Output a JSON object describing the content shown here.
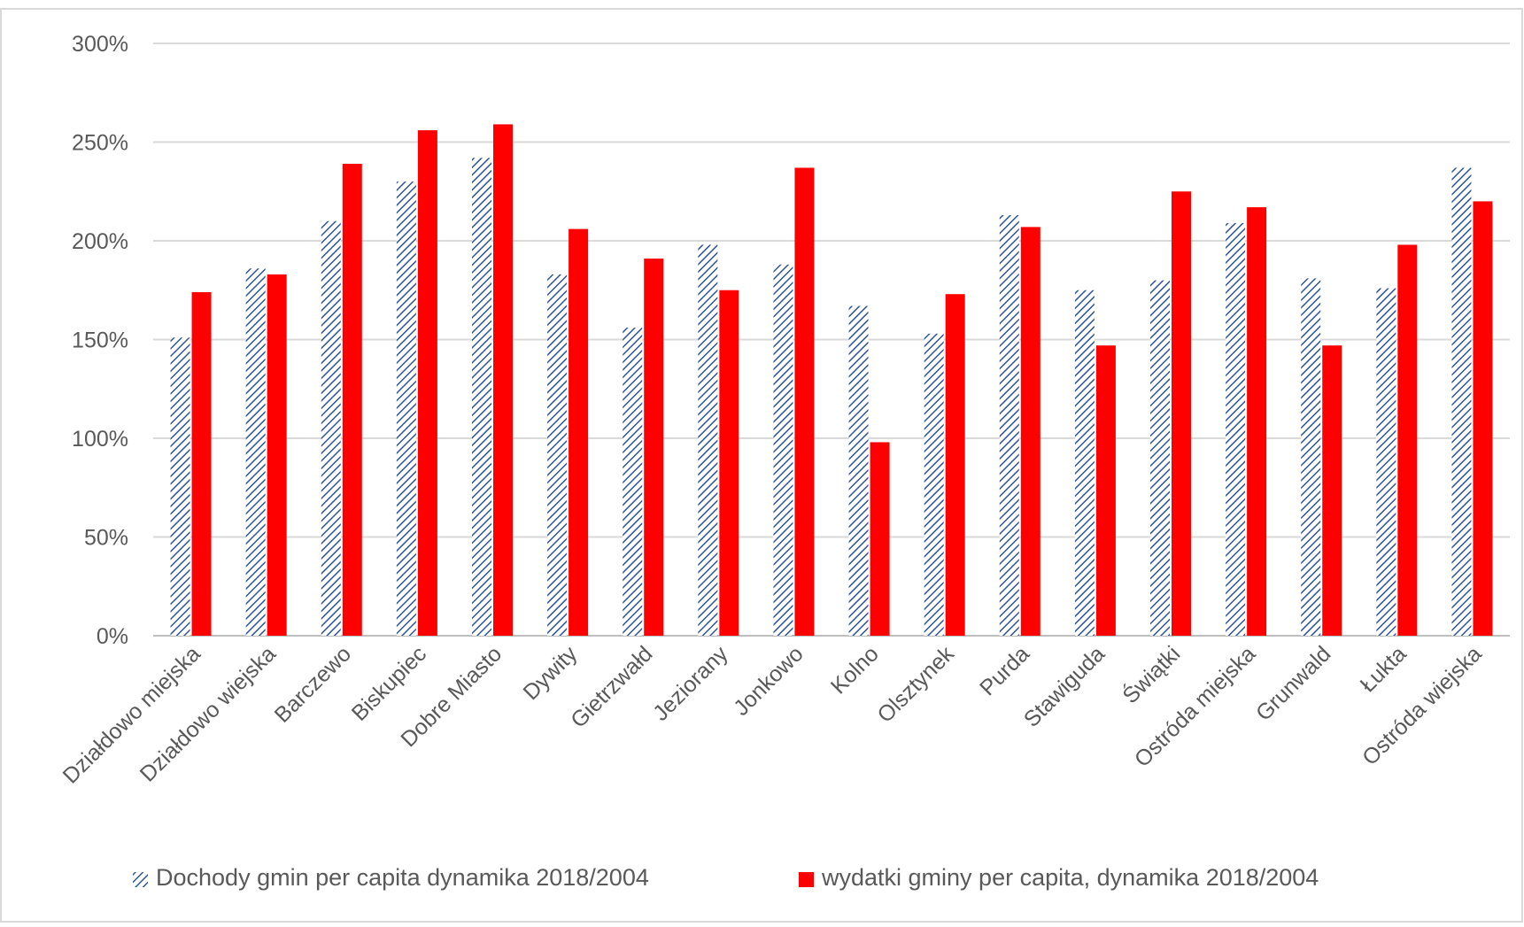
{
  "chart_data": {
    "type": "bar",
    "title": "",
    "xlabel": "",
    "ylabel": "",
    "ylim": [
      0,
      300
    ],
    "y_ticks": [
      "0%",
      "50%",
      "100%",
      "150%",
      "200%",
      "250%",
      "300%"
    ],
    "grid": true,
    "legend_position": "bottom",
    "categories": [
      "Działdowo miejska",
      "Działdowo wiejska",
      "Barczewo",
      "Biskupiec",
      "Dobre Miasto",
      "Dywity",
      "Gietrzwałd",
      "Jeziorany",
      "Jonkowo",
      "Kolno",
      "Olsztynek",
      "Purda",
      "Stawiguda",
      "Świątki",
      "Ostróda miejska",
      "Grunwald",
      "Łukta",
      "Ostróda wiejska"
    ],
    "series": [
      {
        "name": "Dochody gmin per capita dynamika 2018/2004",
        "color": "#2F5597",
        "pattern": "diagonal-hatch",
        "values": [
          151,
          186,
          210,
          230,
          242,
          183,
          156,
          198,
          188,
          167,
          153,
          213,
          175,
          180,
          209,
          181,
          176,
          237
        ]
      },
      {
        "name": "wydatki gminy per capita, dynamika 2018/2004",
        "color": "#FF0000",
        "pattern": "solid",
        "values": [
          174,
          183,
          239,
          256,
          259,
          206,
          191,
          175,
          237,
          98,
          173,
          207,
          147,
          225,
          217,
          147,
          198,
          220
        ]
      }
    ]
  }
}
